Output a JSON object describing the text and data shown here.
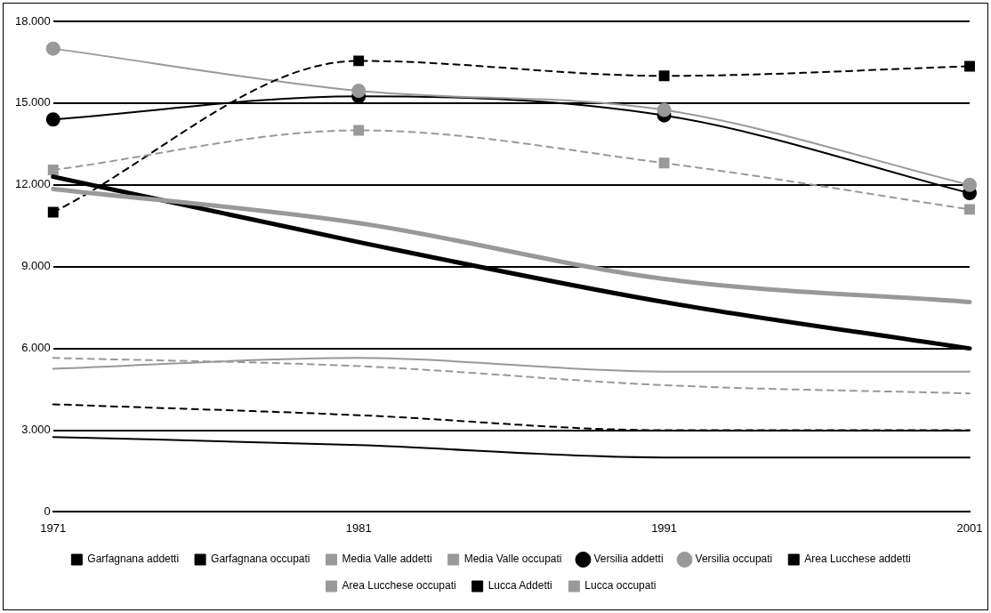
{
  "chart_data": {
    "type": "line",
    "x": [
      1971,
      1981,
      1991,
      2001
    ],
    "xlim": [
      1971,
      2001
    ],
    "xticks": [
      1971,
      1981,
      1991,
      2001
    ],
    "ylim": [
      0,
      18000
    ],
    "yticks": [
      {
        "value": 0,
        "label": "0"
      },
      {
        "value": 3000,
        "label": "3.000"
      },
      {
        "value": 6000,
        "label": "6.000"
      },
      {
        "value": 9000,
        "label": "9.000"
      },
      {
        "value": 12000,
        "label": "12.000"
      },
      {
        "value": 15000,
        "label": "15.000"
      },
      {
        "value": 18000,
        "label": "18.000"
      }
    ],
    "grid": "y",
    "legend": "bottom",
    "marker": "none",
    "line_style": "solid",
    "series": [
      {
        "name": "Garfagnana addetti",
        "color": "#000000",
        "values": [
          2750,
          2450,
          2000,
          2000
        ]
      },
      {
        "name": "Garfagnana occupati",
        "color": "#000000",
        "line_style": "dashed",
        "values": [
          3950,
          3550,
          3000,
          3000
        ]
      },
      {
        "name": "Media Valle addetti",
        "color": "#999999",
        "values": [
          5250,
          5650,
          5150,
          5150
        ]
      },
      {
        "name": "Media Valle occupati",
        "color": "#999999",
        "line_style": "dashed",
        "values": [
          5650,
          5350,
          4650,
          4350
        ]
      },
      {
        "name": "Versilia addetti",
        "color": "#000000",
        "marker": "circle",
        "values": [
          14400,
          15250,
          14550,
          11700
        ]
      },
      {
        "name": "Versilia occupati",
        "color": "#999999",
        "marker": "circle",
        "values": [
          17000,
          15450,
          14750,
          12000
        ]
      },
      {
        "name": "Area Lucchese addetti",
        "color": "#000000",
        "marker": "square",
        "line_style": "dashed",
        "values": [
          11000,
          16550,
          16000,
          16350
        ]
      },
      {
        "name": "Area Lucchese occupati",
        "color": "#999999",
        "marker": "square",
        "line_style": "dashed",
        "values": [
          12550,
          14000,
          12800,
          11100
        ]
      },
      {
        "name": "Lucca Addetti",
        "color": "#000000",
        "values": [
          12300,
          9900,
          7700,
          6000
        ]
      },
      {
        "name": "Lucca occupati",
        "color": "#999999",
        "values": [
          11850,
          10600,
          8550,
          7700
        ]
      }
    ]
  }
}
